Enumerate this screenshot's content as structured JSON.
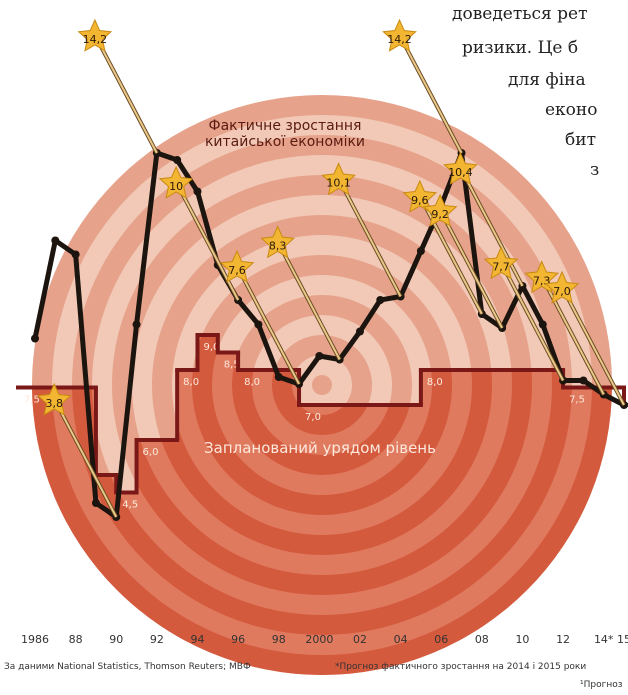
{
  "article_lines": [
    "доведеться рет",
    "ризики. Це б",
    "для фіна",
    "еконо",
    "бит",
    "з"
  ],
  "chart_data": {
    "type": "line",
    "x": [
      1986,
      1987,
      1988,
      1989,
      1990,
      1991,
      1992,
      1993,
      1994,
      1995,
      1996,
      1997,
      1998,
      1999,
      2000,
      2001,
      2002,
      2003,
      2004,
      2005,
      2006,
      2007,
      2008,
      2009,
      2010,
      2011,
      2012,
      2013,
      2014,
      2015
    ],
    "xlim": [
      1986,
      2015
    ],
    "xticks": [
      1986,
      {
        "value": 1988,
        "label": "88"
      },
      {
        "value": 1990,
        "label": "90"
      },
      {
        "value": 1992,
        "label": "92"
      },
      {
        "value": 1994,
        "label": "94"
      },
      {
        "value": 1996,
        "label": "96"
      },
      {
        "value": 1998,
        "label": "98"
      },
      2000,
      {
        "value": 2002,
        "label": "02"
      },
      {
        "value": 2004,
        "label": "04"
      },
      {
        "value": 2006,
        "label": "06"
      },
      {
        "value": 2008,
        "label": "08"
      },
      {
        "value": 2010,
        "label": "10"
      },
      {
        "value": 2012,
        "label": "12"
      },
      {
        "value": 2014,
        "label": "14*"
      },
      {
        "value": 2015,
        "label": "15"
      }
    ],
    "ylim": [
      0,
      15
    ],
    "series": [
      {
        "name": "Фактичне зростання китайської економіки",
        "color": "#1c140e",
        "values": [
          8.9,
          11.7,
          11.3,
          4.2,
          3.8,
          9.3,
          14.2,
          14.0,
          13.1,
          11.0,
          10.0,
          9.3,
          7.8,
          7.6,
          8.4,
          8.3,
          9.1,
          10.0,
          10.1,
          11.4,
          12.7,
          14.2,
          9.6,
          9.2,
          10.4,
          9.3,
          7.7,
          7.7,
          7.3,
          7.0
        ],
        "value_labels": [
          null,
          null,
          null,
          null,
          "3,8",
          null,
          "14,2",
          null,
          null,
          null,
          "10",
          null,
          null,
          "7,6",
          null,
          "8,3",
          null,
          null,
          "10,1",
          null,
          null,
          "14,2",
          "9,6",
          "9,2",
          "10,4",
          null,
          "7,7",
          null,
          "7,3",
          "7,0"
        ]
      },
      {
        "name": "Запланований урядом рівень",
        "color": "#7a1818",
        "values": [
          7.5,
          7.5,
          7.5,
          5.0,
          4.5,
          6.0,
          6.0,
          8.0,
          9.0,
          8.5,
          8.0,
          8.0,
          8.0,
          7.0,
          7.0,
          7.0,
          7.0,
          7.0,
          7.0,
          8.0,
          8.0,
          8.0,
          8.0,
          8.0,
          8.0,
          8.0,
          7.5,
          7.5,
          7.5,
          7.0
        ],
        "value_labels": [
          "7,5",
          null,
          null,
          null,
          "4,5",
          "6,0",
          null,
          "8,0",
          "9,0",
          "8,5",
          "8,0",
          null,
          null,
          "7,0",
          null,
          null,
          null,
          null,
          null,
          "8,0",
          null,
          null,
          null,
          null,
          null,
          null,
          "7,5",
          null,
          null,
          "7,0"
        ]
      }
    ],
    "notes": [
      "За даними National Statistics, Thomson Reuters; МВФ",
      "*Прогноз фактичного зростання на 2014 і 2015 роки",
      "¹Прогноз"
    ]
  }
}
